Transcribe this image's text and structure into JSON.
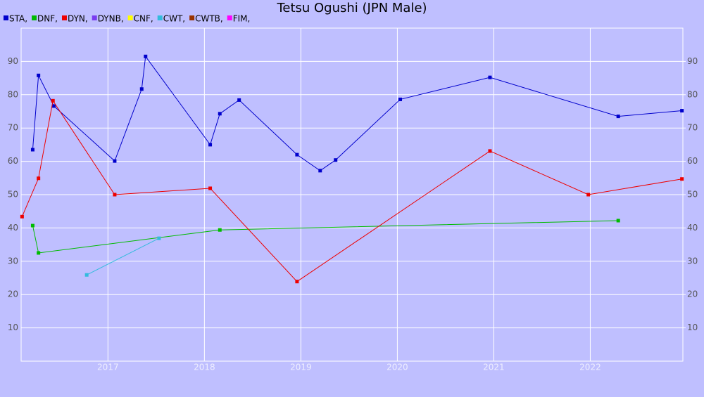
{
  "chart_data": {
    "type": "line",
    "title": "Tetsu Ogushi (JPN Male)",
    "xlim": [
      2016.1,
      2022.96
    ],
    "xticks": [
      2017,
      2018,
      2019,
      2020,
      2021,
      2022
    ],
    "ylim": [
      0,
      100
    ],
    "yticks": [
      10,
      20,
      30,
      40,
      50,
      60,
      70,
      80,
      90
    ],
    "y2lim": [
      0,
      100
    ],
    "y2ticks": [
      10,
      20,
      30,
      40,
      50,
      60,
      70,
      80,
      90
    ],
    "grid": true,
    "legend": "top-left",
    "background": "#bfbfff",
    "series": [
      {
        "name": "STA,",
        "color": "#0000cc",
        "x": [
          2016.22,
          2016.28,
          2016.44,
          2017.07,
          2017.35,
          2017.39,
          2018.06,
          2018.16,
          2018.36,
          2018.96,
          2019.2,
          2019.36,
          2020.03,
          2020.96,
          2022.29,
          2022.95
        ],
        "values": [
          63.5,
          85.8,
          76.6,
          60.1,
          81.7,
          91.5,
          65.0,
          74.3,
          78.4,
          62.0,
          57.2,
          60.4,
          78.6,
          85.2,
          73.5,
          75.2
        ]
      },
      {
        "name": "DNF,",
        "color": "#00bb00",
        "x": [
          2016.22,
          2016.28,
          2018.16,
          2022.29
        ],
        "values": [
          40.7,
          32.5,
          39.4,
          42.2
        ]
      },
      {
        "name": "DYN,",
        "color": "#ee0000",
        "x": [
          2016.11,
          2016.28,
          2016.43,
          2017.07,
          2018.06,
          2018.96,
          2020.96,
          2021.98,
          2022.95
        ],
        "values": [
          43.4,
          54.9,
          78.2,
          50.0,
          51.9,
          23.9,
          63.1,
          50.0,
          54.7
        ]
      },
      {
        "name": "DYNB,",
        "color": "#7a3cf0",
        "x": [],
        "values": []
      },
      {
        "name": "CNF,",
        "color": "#ffff00",
        "x": [],
        "values": []
      },
      {
        "name": "CWT,",
        "color": "#33bbdd",
        "x": [
          2016.78,
          2017.53
        ],
        "values": [
          25.9,
          36.9
        ]
      },
      {
        "name": "CWTB,",
        "color": "#993300",
        "x": [],
        "values": []
      },
      {
        "name": "FIM,",
        "color": "#ff00ff",
        "x": [],
        "values": []
      }
    ]
  }
}
